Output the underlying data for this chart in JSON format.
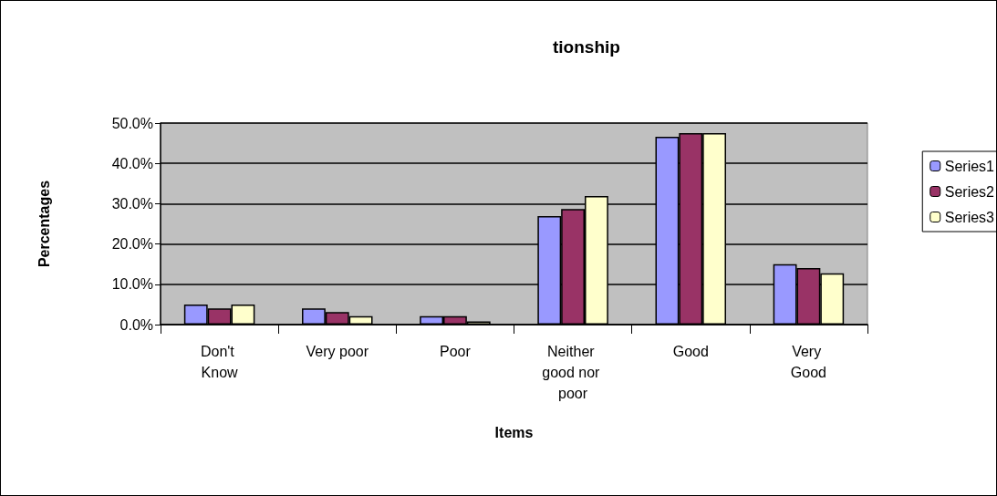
{
  "chart_data": {
    "type": "bar",
    "title": "tionship",
    "xlabel": "Items",
    "ylabel": "Percentages",
    "categories": [
      "Don't Know",
      "Very poor",
      "Poor",
      "Neither good nor poor",
      "Good",
      "Very Good"
    ],
    "series": [
      {
        "name": "Series1",
        "color": "#9999ff",
        "values": [
          5.0,
          4.0,
          2.1,
          26.9,
          46.6,
          15.0
        ]
      },
      {
        "name": "Series2",
        "color": "#993366",
        "values": [
          4.0,
          3.1,
          2.1,
          28.7,
          47.5,
          14.0
        ]
      },
      {
        "name": "Series3",
        "color": "#ffffcc",
        "values": [
          5.0,
          2.1,
          0.8,
          31.9,
          47.5,
          12.7
        ]
      }
    ],
    "ylim": [
      0,
      50
    ],
    "yticks": [
      {
        "value": 0,
        "label": "0.0%"
      },
      {
        "value": 10,
        "label": "10.0%"
      },
      {
        "value": 20,
        "label": "20.0%"
      },
      {
        "value": 30,
        "label": "30.0%"
      },
      {
        "value": 40,
        "label": "40.0%"
      },
      {
        "value": 50,
        "label": "50.0%"
      }
    ],
    "grid": "y",
    "legend": "right"
  }
}
